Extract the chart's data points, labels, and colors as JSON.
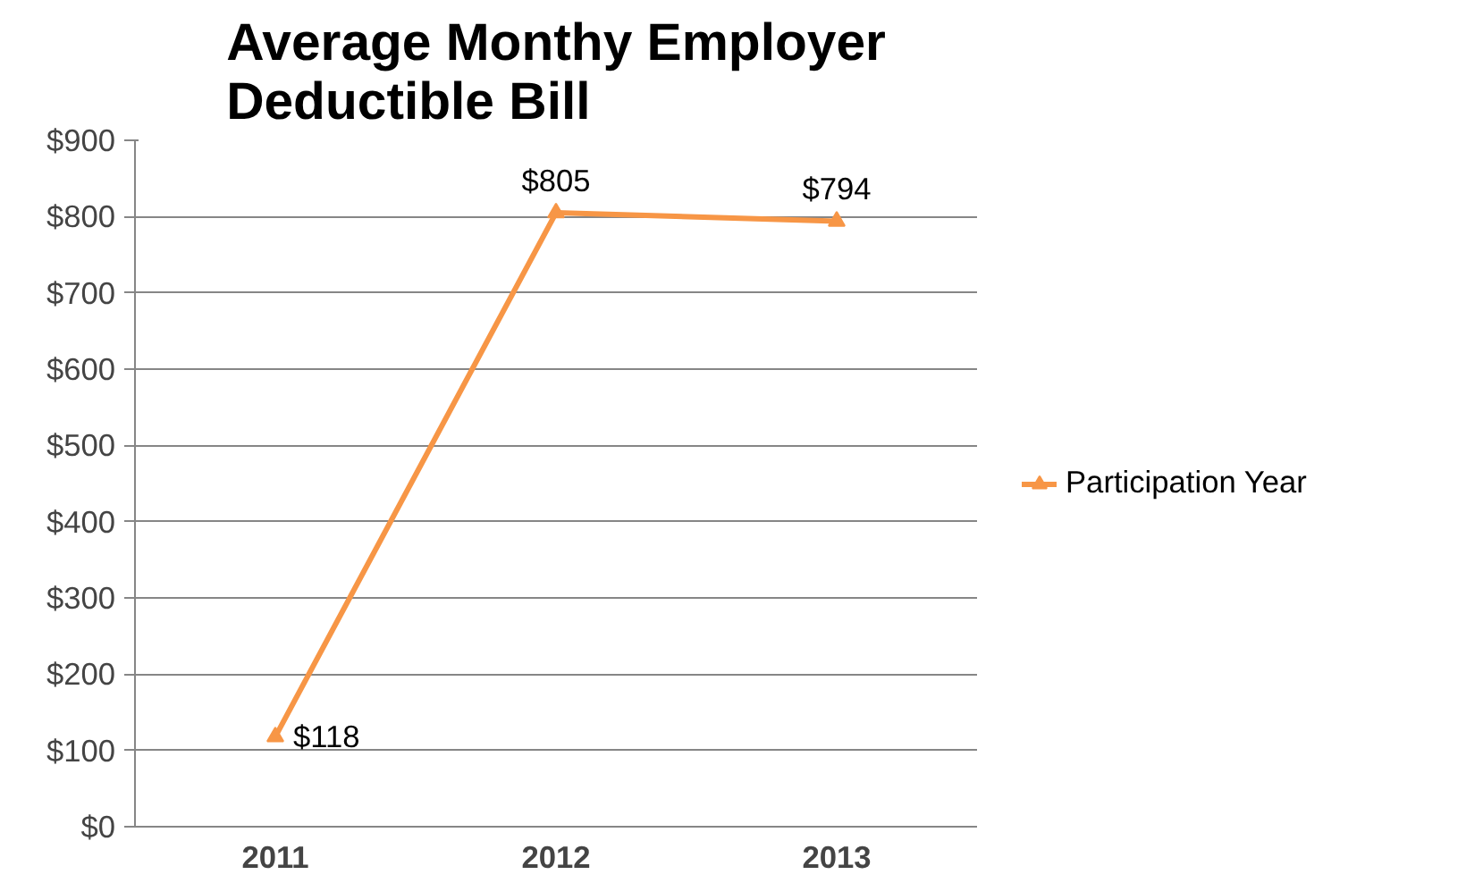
{
  "chart_data": {
    "type": "line",
    "title": "Average Monthy Employer\nDeductible Bill",
    "categories": [
      "2011",
      "2012",
      "2013"
    ],
    "series": [
      {
        "name": "Participation Year",
        "color": "#f79646",
        "values": [
          118,
          805,
          794
        ],
        "value_labels": [
          "$118",
          "$805",
          "$794"
        ]
      }
    ],
    "ylim": [
      0,
      900
    ],
    "yticks": [
      {
        "value": 0,
        "label": "$0"
      },
      {
        "value": 100,
        "label": "$100"
      },
      {
        "value": 200,
        "label": "$200"
      },
      {
        "value": 300,
        "label": "$300"
      },
      {
        "value": 400,
        "label": "$400"
      },
      {
        "value": 500,
        "label": "$500"
      },
      {
        "value": 600,
        "label": "$600"
      },
      {
        "value": 700,
        "label": "$700"
      },
      {
        "value": 800,
        "label": "$800"
      },
      {
        "value": 900,
        "label": "$900"
      }
    ],
    "grid": "y",
    "legend": "right",
    "marker": "triangle",
    "line_style": "solid"
  }
}
